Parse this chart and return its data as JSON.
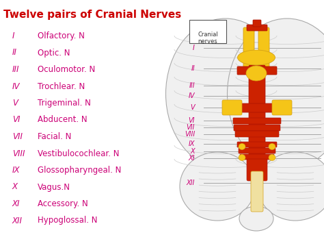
{
  "title": "Twelve pairs of Cranial Nerves",
  "title_color": "#cc0000",
  "title_fontsize": 11,
  "background_color": "#ffffff",
  "roman_numerals": [
    "I",
    "II",
    "III",
    "IV",
    "V",
    "VI",
    "VII",
    "VIII",
    "IX",
    "X",
    "XI",
    "XII"
  ],
  "nerve_names": [
    "Olfactory. N",
    "Optic. N",
    "Oculomotor. N",
    "Trochlear. N",
    "Trigeminal. N",
    "Abducent. N",
    "Facial. N",
    "Vestibulocochlear. N",
    "Glossopharyngeal. N",
    "Vagus.N",
    "Accessory. N",
    "Hypoglossal. N"
  ],
  "list_color": "#cc0077",
  "list_fontsize": 8.5,
  "box_label": "Cranial\nnerves",
  "diagram_color": "#999999",
  "nerve_roman_color": "#cc0077",
  "nerve_roman_fontsize": 7,
  "red_color": "#cc2200",
  "yellow_color": "#f5c518",
  "yellow_edge": "#d4a017",
  "brain_color": "#f0f0f0",
  "brain_edge": "#aaaaaa"
}
